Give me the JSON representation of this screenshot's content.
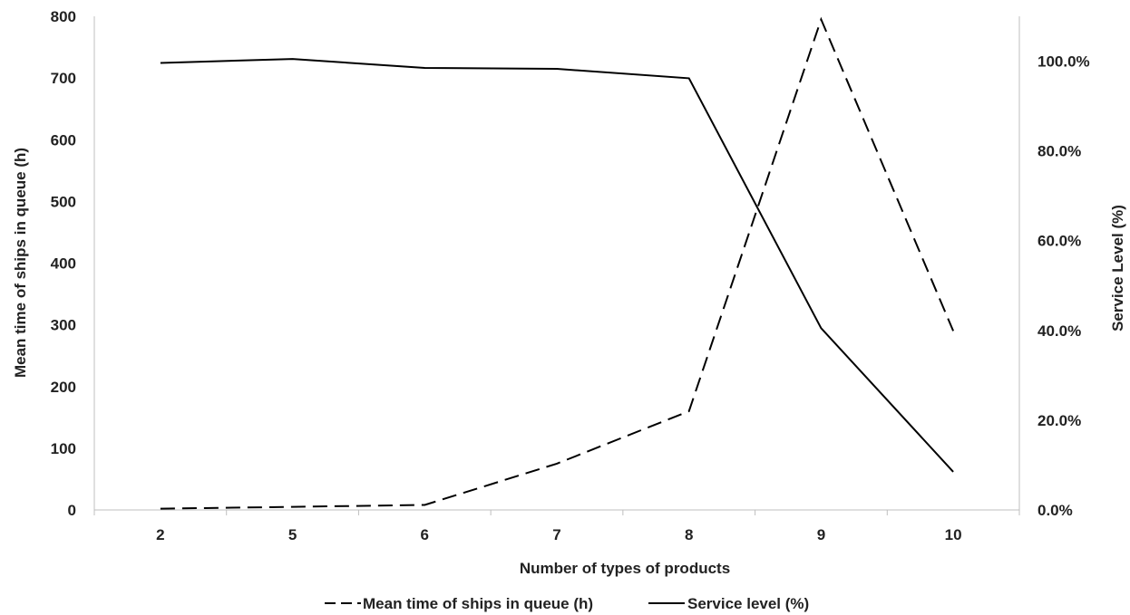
{
  "chart_data": {
    "type": "line",
    "categories": [
      "2",
      "5",
      "6",
      "7",
      "8",
      "9",
      "10"
    ],
    "xlabel": "Number of  types of products",
    "ylabel": "Mean time of ships in queue (h)",
    "y2label": "Service Level (%)",
    "ylim": [
      0,
      800
    ],
    "y2lim": [
      0,
      110
    ],
    "yticks": [
      "0",
      "100",
      "200",
      "300",
      "400",
      "500",
      "600",
      "700",
      "800"
    ],
    "y2ticks": [
      "0.0%",
      "20.0%",
      "40.0%",
      "60.0%",
      "80.0%",
      "100.0%"
    ],
    "grid": false,
    "legend_position": "bottom",
    "series": [
      {
        "name": "Mean time of ships in queue (h)",
        "axis": "left",
        "style": "dashed",
        "color": "#000000",
        "values": [
          2,
          5,
          8,
          75,
          160,
          795,
          290
        ]
      },
      {
        "name": "Service level (%)",
        "axis": "right",
        "style": "solid",
        "color": "#000000",
        "values": [
          99.6,
          100.5,
          98.5,
          98.3,
          96.2,
          40.5,
          8.5
        ]
      }
    ]
  }
}
